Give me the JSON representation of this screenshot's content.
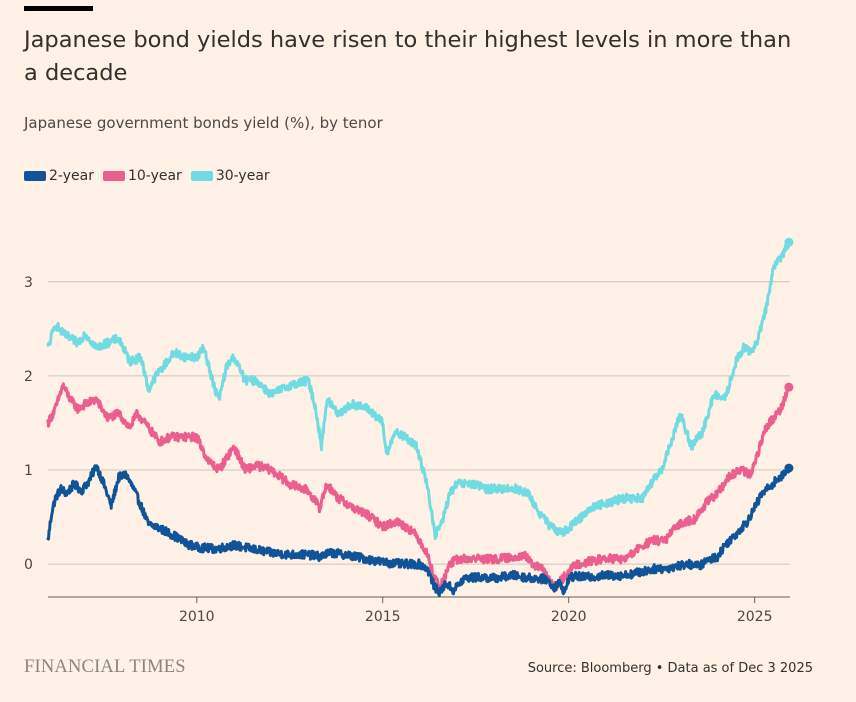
{
  "header": {
    "title": "Japanese bond yields have risen to their highest levels in more than a decade",
    "subtitle": "Japanese government bonds yield (%), by tenor"
  },
  "legend": [
    {
      "label": "2-year",
      "color": "#0f5499"
    },
    {
      "label": "10-year",
      "color": "#eb5e8d"
    },
    {
      "label": "30-year",
      "color": "#70dce2"
    }
  ],
  "footer": {
    "logo": "FINANCIAL TIMES",
    "source": "Source: Bloomberg • Data as of Dec 3 2025"
  },
  "chart_data": {
    "type": "line",
    "title": "Japanese bond yields have risen to their highest levels in more than a decade",
    "subtitle": "Japanese government bonds yield (%), by tenor",
    "xlabel": "",
    "ylabel": "",
    "xlim": [
      2006.0,
      2025.95
    ],
    "ylim": [
      -0.35,
      3.55
    ],
    "xticks": [
      2010,
      2015,
      2020,
      2025
    ],
    "yticks": [
      0,
      1,
      2,
      3
    ],
    "grid": true,
    "legend_position": "top-left",
    "series": [
      {
        "name": "2-year",
        "color": "#0f5499",
        "x": [
          2006.0,
          2006.1,
          2006.2,
          2006.35,
          2006.5,
          2006.7,
          2006.9,
          2007.1,
          2007.3,
          2007.5,
          2007.7,
          2007.9,
          2008.1,
          2008.3,
          2008.5,
          2008.7,
          2008.9,
          2009.1,
          2009.4,
          2009.7,
          2010.0,
          2010.5,
          2011.0,
          2011.5,
          2012.0,
          2012.5,
          2013.0,
          2013.3,
          2013.6,
          2014.0,
          2014.5,
          2015.0,
          2015.5,
          2016.0,
          2016.2,
          2016.4,
          2016.55,
          2016.7,
          2016.9,
          2017.2,
          2017.6,
          2018.0,
          2018.5,
          2019.0,
          2019.4,
          2019.6,
          2019.75,
          2019.9,
          2020.0,
          2020.2,
          2020.5,
          2021.0,
          2021.5,
          2022.0,
          2022.3,
          2022.6,
          2022.9,
          2023.2,
          2023.5,
          2023.8,
          2024.0,
          2024.2,
          2024.5,
          2024.8,
          2025.0,
          2025.2,
          2025.4,
          2025.6,
          2025.8,
          2025.92
        ],
        "values": [
          0.25,
          0.55,
          0.7,
          0.8,
          0.75,
          0.85,
          0.78,
          0.88,
          1.05,
          0.85,
          0.62,
          0.92,
          0.95,
          0.8,
          0.62,
          0.42,
          0.4,
          0.36,
          0.3,
          0.22,
          0.18,
          0.16,
          0.2,
          0.16,
          0.12,
          0.1,
          0.1,
          0.08,
          0.12,
          0.1,
          0.06,
          0.02,
          0.0,
          0.0,
          -0.05,
          -0.25,
          -0.3,
          -0.2,
          -0.28,
          -0.15,
          -0.14,
          -0.15,
          -0.12,
          -0.15,
          -0.16,
          -0.25,
          -0.2,
          -0.3,
          -0.15,
          -0.13,
          -0.14,
          -0.12,
          -0.12,
          -0.08,
          -0.05,
          -0.05,
          -0.02,
          0.0,
          -0.02,
          0.05,
          0.08,
          0.2,
          0.32,
          0.45,
          0.6,
          0.75,
          0.82,
          0.9,
          0.95,
          1.02
        ]
      },
      {
        "name": "10-year",
        "color": "#eb5e8d",
        "x": [
          2006.0,
          2006.2,
          2006.4,
          2006.6,
          2006.8,
          2007.0,
          2007.3,
          2007.6,
          2007.9,
          2008.2,
          2008.4,
          2008.6,
          2008.8,
          2009.0,
          2009.3,
          2009.6,
          2010.0,
          2010.3,
          2010.6,
          2011.0,
          2011.3,
          2011.6,
          2012.0,
          2012.5,
          2013.0,
          2013.3,
          2013.5,
          2013.8,
          2014.2,
          2014.6,
          2015.0,
          2015.4,
          2015.8,
          2016.0,
          2016.2,
          2016.35,
          2016.55,
          2016.8,
          2017.0,
          2017.5,
          2018.0,
          2018.5,
          2018.8,
          2019.0,
          2019.3,
          2019.6,
          2019.75,
          2019.95,
          2020.2,
          2020.6,
          2021.0,
          2021.5,
          2022.0,
          2022.3,
          2022.6,
          2022.9,
          2023.1,
          2023.4,
          2023.7,
          2024.0,
          2024.3,
          2024.6,
          2024.9,
          2025.1,
          2025.3,
          2025.5,
          2025.7,
          2025.92
        ],
        "values": [
          1.5,
          1.65,
          1.9,
          1.75,
          1.65,
          1.7,
          1.75,
          1.55,
          1.6,
          1.45,
          1.6,
          1.5,
          1.4,
          1.3,
          1.35,
          1.35,
          1.35,
          1.1,
          1.0,
          1.25,
          1.0,
          1.05,
          1.0,
          0.85,
          0.78,
          0.6,
          0.85,
          0.7,
          0.6,
          0.52,
          0.4,
          0.45,
          0.35,
          0.25,
          0.1,
          -0.1,
          -0.25,
          0.0,
          0.05,
          0.06,
          0.05,
          0.07,
          0.1,
          0.0,
          -0.05,
          -0.25,
          -0.2,
          -0.1,
          0.0,
          0.03,
          0.06,
          0.05,
          0.2,
          0.25,
          0.25,
          0.4,
          0.45,
          0.48,
          0.65,
          0.75,
          0.92,
          1.0,
          0.95,
          1.2,
          1.45,
          1.55,
          1.65,
          1.88
        ]
      },
      {
        "name": "30-year",
        "color": "#70dce2",
        "x": [
          2006.0,
          2006.2,
          2006.4,
          2006.6,
          2006.8,
          2007.0,
          2007.3,
          2007.6,
          2007.9,
          2008.2,
          2008.5,
          2008.7,
          2008.9,
          2009.1,
          2009.4,
          2009.7,
          2010.0,
          2010.2,
          2010.45,
          2010.6,
          2010.8,
          2011.0,
          2011.3,
          2011.6,
          2012.0,
          2012.5,
          2013.0,
          2013.2,
          2013.35,
          2013.5,
          2013.8,
          2014.2,
          2014.6,
          2015.0,
          2015.1,
          2015.3,
          2015.6,
          2015.9,
          2016.2,
          2016.4,
          2016.6,
          2016.8,
          2017.0,
          2017.4,
          2017.8,
          2018.2,
          2018.6,
          2018.9,
          2019.2,
          2019.5,
          2019.7,
          2019.9,
          2020.2,
          2020.6,
          2021.0,
          2021.5,
          2022.0,
          2022.2,
          2022.5,
          2022.8,
          2023.0,
          2023.3,
          2023.6,
          2023.9,
          2024.2,
          2024.5,
          2024.7,
          2024.9,
          2025.1,
          2025.3,
          2025.5,
          2025.7,
          2025.92
        ],
        "values": [
          2.3,
          2.55,
          2.45,
          2.4,
          2.35,
          2.45,
          2.3,
          2.35,
          2.4,
          2.15,
          2.2,
          1.85,
          2.0,
          2.1,
          2.25,
          2.2,
          2.2,
          2.3,
          1.9,
          1.75,
          2.1,
          2.2,
          1.95,
          1.95,
          1.8,
          1.9,
          1.95,
          1.65,
          1.25,
          1.75,
          1.6,
          1.7,
          1.65,
          1.5,
          1.15,
          1.4,
          1.35,
          1.25,
          0.85,
          0.3,
          0.45,
          0.75,
          0.85,
          0.85,
          0.8,
          0.8,
          0.8,
          0.75,
          0.55,
          0.4,
          0.35,
          0.35,
          0.45,
          0.6,
          0.65,
          0.7,
          0.7,
          0.85,
          1.0,
          1.35,
          1.6,
          1.25,
          1.4,
          1.8,
          1.75,
          2.15,
          2.3,
          2.25,
          2.4,
          2.7,
          3.15,
          3.25,
          3.42
        ]
      }
    ]
  }
}
